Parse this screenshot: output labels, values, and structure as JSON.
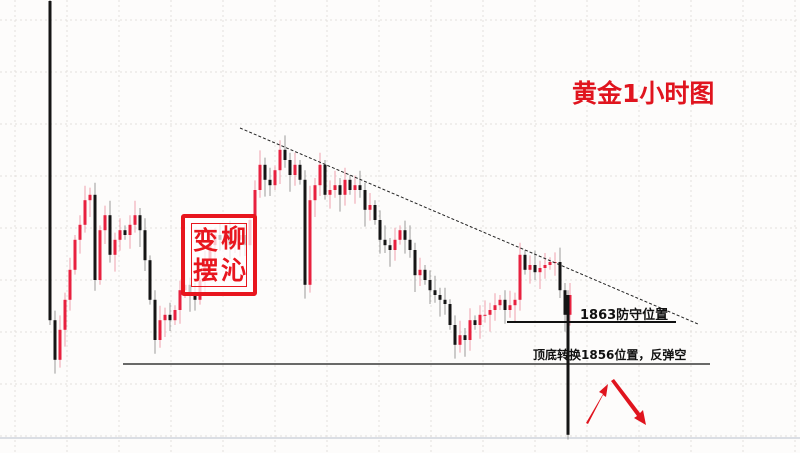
{
  "title": "黄金1小时图",
  "stamp": {
    "chars": [
      "变",
      "柳",
      "摆",
      "沁"
    ]
  },
  "colors": {
    "bull": "#e8213f",
    "bear": "#151515",
    "annotation": "#e0141e",
    "grid": "#e3e0dc"
  },
  "chart_data": {
    "type": "candlestick",
    "title": "黄金1小时图",
    "first_open": 1916.5,
    "closes": [
      1863.3,
      1856.7,
      1861.7,
      1866.7,
      1871.7,
      1876.7,
      1879.2,
      1883.3,
      1884.2,
      1870,
      1878.3,
      1880.8,
      1874.2,
      1876.7,
      1878.3,
      1877.5,
      1879.2,
      1880.8,
      1878.3,
      1873.3,
      1866.7,
      1860,
      1863.3,
      1864.2,
      1863.3,
      1865,
      1868.3,
      1869.2,
      1867.5,
      1866.7,
      1870,
      1873.3,
      1875.8,
      1877.5,
      1876.7,
      1878.3,
      1875.8,
      1876.7,
      1877.5,
      1875.8,
      1880,
      1885,
      1889.2,
      1886.7,
      1885.8,
      1888.3,
      1891.7,
      1890,
      1887.5,
      1889.2,
      1886.7,
      1869.2,
      1883.3,
      1885.8,
      1889.2,
      1884.2,
      1885,
      1885.8,
      1884.2,
      1886.7,
      1885,
      1885.8,
      1885,
      1881.7,
      1882.5,
      1880,
      1876.7,
      1875.8,
      1875,
      1876.7,
      1878.3,
      1876.7,
      1875,
      1870.8,
      1871.7,
      1870,
      1868.3,
      1867.5,
      1866.7,
      1866,
      1862.5,
      1859.2,
      1860.8,
      1860,
      1863.3,
      1862.5,
      1864.2,
      1864.2,
      1865,
      1865.8,
      1866.7,
      1865,
      1865.8,
      1866.7,
      1874.2,
      1871.7,
      1872.5,
      1871.3,
      1872,
      1872.5,
      1873,
      1873,
      1868.3,
      1864.2,
      1867.5,
      1844.2
    ],
    "levels": [
      {
        "price": 1863,
        "label": "1863防守位置"
      },
      {
        "price": 1856,
        "label": "顶底转换1856位置，反弹空"
      }
    ],
    "trendline": "descending dashed resistance",
    "grid": true
  }
}
